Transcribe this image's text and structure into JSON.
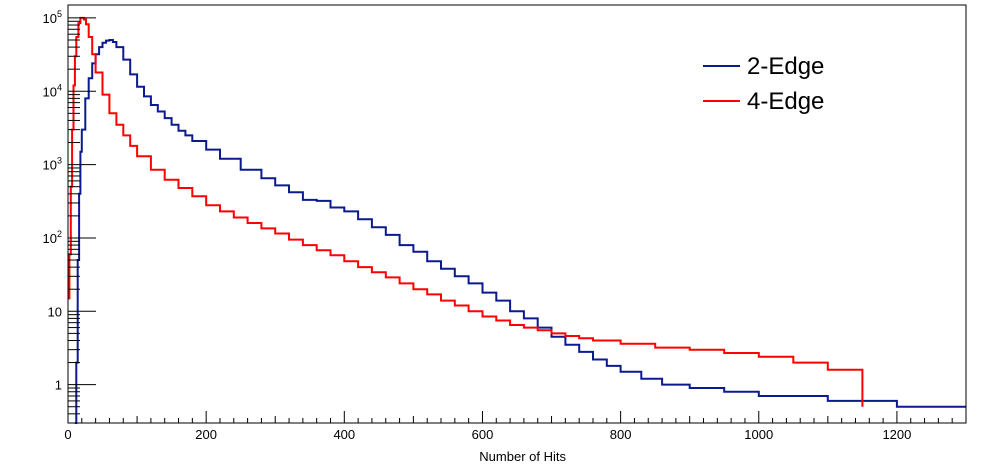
{
  "chart_data": {
    "type": "line",
    "title": "",
    "xlabel": "Number of Hits",
    "ylabel": "",
    "xlim": [
      0,
      1300
    ],
    "ylim": [
      0.3,
      150000
    ],
    "yscale": "log",
    "grid": false,
    "legend_position": "top-right",
    "x_ticks": [
      0,
      200,
      400,
      600,
      800,
      1000,
      1200
    ],
    "x_tick_labels": [
      "0",
      "200",
      "400",
      "600",
      "800",
      "1000",
      "1200"
    ],
    "y_ticks": [
      1,
      10,
      100,
      1000,
      10000,
      100000
    ],
    "y_tick_labels": [
      {
        "base": "",
        "exp": "",
        "text": "1"
      },
      {
        "base": "",
        "exp": "",
        "text": "10"
      },
      {
        "base": "10",
        "exp": "2",
        "text": ""
      },
      {
        "base": "10",
        "exp": "3",
        "text": ""
      },
      {
        "base": "10",
        "exp": "4",
        "text": ""
      },
      {
        "base": "10",
        "exp": "5",
        "text": ""
      }
    ],
    "series": [
      {
        "name": "2-Edge",
        "color": "#0b1a8f",
        "points": [
          [
            10,
            0.2
          ],
          [
            12,
            2
          ],
          [
            14,
            50
          ],
          [
            16,
            400
          ],
          [
            18,
            1500
          ],
          [
            20,
            3000
          ],
          [
            25,
            8000
          ],
          [
            30,
            15000
          ],
          [
            35,
            24000
          ],
          [
            40,
            32000
          ],
          [
            45,
            40000
          ],
          [
            50,
            46000
          ],
          [
            55,
            49000
          ],
          [
            60,
            50000
          ],
          [
            65,
            47000
          ],
          [
            70,
            40000
          ],
          [
            80,
            27000
          ],
          [
            90,
            17000
          ],
          [
            100,
            11500
          ],
          [
            110,
            8500
          ],
          [
            120,
            6500
          ],
          [
            130,
            5300
          ],
          [
            140,
            4300
          ],
          [
            150,
            3500
          ],
          [
            160,
            2900
          ],
          [
            170,
            2500
          ],
          [
            180,
            2100
          ],
          [
            200,
            1600
          ],
          [
            220,
            1200
          ],
          [
            250,
            850
          ],
          [
            280,
            650
          ],
          [
            300,
            520
          ],
          [
            320,
            420
          ],
          [
            340,
            330
          ],
          [
            360,
            320
          ],
          [
            380,
            260
          ],
          [
            400,
            230
          ],
          [
            420,
            180
          ],
          [
            440,
            140
          ],
          [
            460,
            110
          ],
          [
            480,
            80
          ],
          [
            500,
            65
          ],
          [
            520,
            48
          ],
          [
            540,
            38
          ],
          [
            560,
            30
          ],
          [
            580,
            24
          ],
          [
            600,
            18
          ],
          [
            620,
            14
          ],
          [
            640,
            10
          ],
          [
            660,
            8
          ],
          [
            680,
            6
          ],
          [
            700,
            4.5
          ],
          [
            720,
            3.5
          ],
          [
            740,
            2.8
          ],
          [
            760,
            2.2
          ],
          [
            780,
            1.8
          ],
          [
            800,
            1.5
          ],
          [
            830,
            1.2
          ],
          [
            860,
            1
          ],
          [
            900,
            0.9
          ],
          [
            950,
            0.8
          ],
          [
            1000,
            0.7
          ],
          [
            1100,
            0.6
          ],
          [
            1200,
            0.5
          ],
          [
            1300,
            0.5
          ]
        ]
      },
      {
        "name": "4-Edge",
        "color": "#ff0000",
        "points": [
          [
            0,
            15
          ],
          [
            2,
            60
          ],
          [
            4,
            500
          ],
          [
            6,
            3000
          ],
          [
            8,
            12000
          ],
          [
            10,
            30000
          ],
          [
            12,
            55000
          ],
          [
            15,
            85000
          ],
          [
            18,
            100000
          ],
          [
            20,
            100000
          ],
          [
            23,
            95000
          ],
          [
            26,
            82000
          ],
          [
            30,
            55000
          ],
          [
            35,
            32000
          ],
          [
            40,
            18000
          ],
          [
            50,
            9000
          ],
          [
            60,
            5000
          ],
          [
            70,
            3500
          ],
          [
            80,
            2500
          ],
          [
            90,
            1800
          ],
          [
            100,
            1300
          ],
          [
            120,
            850
          ],
          [
            140,
            620
          ],
          [
            160,
            480
          ],
          [
            180,
            370
          ],
          [
            200,
            280
          ],
          [
            220,
            230
          ],
          [
            240,
            190
          ],
          [
            260,
            160
          ],
          [
            280,
            135
          ],
          [
            300,
            115
          ],
          [
            320,
            95
          ],
          [
            340,
            80
          ],
          [
            360,
            68
          ],
          [
            380,
            58
          ],
          [
            400,
            48
          ],
          [
            420,
            40
          ],
          [
            440,
            34
          ],
          [
            460,
            29
          ],
          [
            480,
            24
          ],
          [
            500,
            20
          ],
          [
            520,
            17
          ],
          [
            540,
            14
          ],
          [
            560,
            12
          ],
          [
            580,
            10
          ],
          [
            600,
            8.5
          ],
          [
            620,
            7.5
          ],
          [
            640,
            6.5
          ],
          [
            660,
            6
          ],
          [
            680,
            5.5
          ],
          [
            700,
            5
          ],
          [
            720,
            4.6
          ],
          [
            740,
            4.3
          ],
          [
            760,
            4
          ],
          [
            800,
            3.6
          ],
          [
            850,
            3.2
          ],
          [
            900,
            3
          ],
          [
            950,
            2.7
          ],
          [
            1000,
            2.4
          ],
          [
            1050,
            2
          ],
          [
            1100,
            1.6
          ],
          [
            1150,
            0.5
          ]
        ]
      }
    ]
  }
}
